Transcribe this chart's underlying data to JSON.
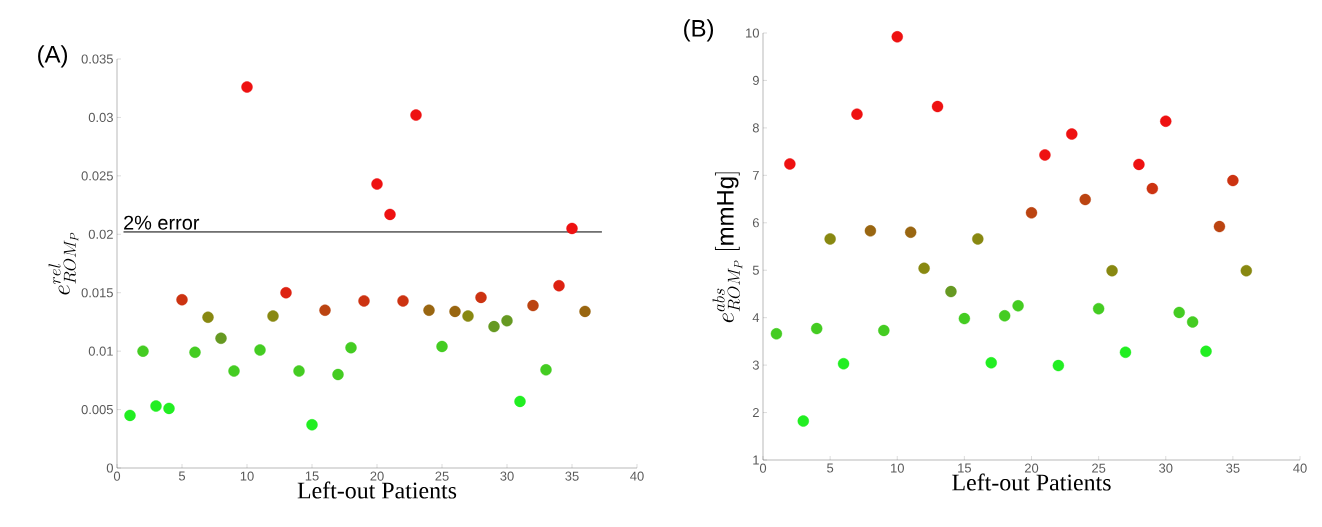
{
  "chart_data": [
    {
      "type": "scatter",
      "title": "(A)",
      "xlabel": "Left-out Patients",
      "ylabel": "e^{rel}_{ROM_P}",
      "xlim": [
        0,
        40
      ],
      "xticks": [
        0,
        5,
        10,
        15,
        20,
        25,
        30,
        35,
        40
      ],
      "ylim": [
        0,
        0.035
      ],
      "yticks": [
        0,
        0.005,
        0.01,
        0.015,
        0.02,
        0.025,
        0.03,
        0.035
      ],
      "ref_lines": [
        {
          "axis": "y",
          "value": 0.0202,
          "label": "2% error",
          "color": "#000000"
        }
      ],
      "x": [
        1,
        2,
        3,
        4,
        5,
        6,
        7,
        8,
        9,
        10,
        11,
        12,
        13,
        14,
        15,
        16,
        17,
        18,
        19,
        20,
        21,
        22,
        23,
        24,
        25,
        26,
        27,
        28,
        29,
        30,
        31,
        32,
        33,
        34,
        35,
        36
      ],
      "series": [
        {
          "values": [
            0.0045,
            0.01,
            0.0053,
            0.0051,
            0.0144,
            0.0099,
            0.0129,
            0.0111,
            0.0083,
            0.0326,
            0.0101,
            0.013,
            0.015,
            0.0083,
            0.0037,
            0.0135,
            0.008,
            0.0103,
            0.0143,
            0.0243,
            0.0217,
            0.0143,
            0.0302,
            0.0135,
            0.0104,
            0.0134,
            0.013,
            0.0146,
            0.0121,
            0.0126,
            0.0057,
            0.0139,
            0.0084,
            0.0156,
            0.0205,
            0.0134
          ],
          "colors": [
            "#22ee22",
            "#44cc22",
            "#22ee22",
            "#22ee22",
            "#cc3311",
            "#44cc22",
            "#888811",
            "#669922",
            "#44cc22",
            "#ee1111",
            "#44cc22",
            "#888811",
            "#dd2211",
            "#44cc22",
            "#22ee22",
            "#bb4411",
            "#44cc22",
            "#44cc22",
            "#cc3311",
            "#ee1111",
            "#ee1111",
            "#cc3311",
            "#ee1111",
            "#996611",
            "#44cc22",
            "#996611",
            "#888811",
            "#cc3311",
            "#669922",
            "#669922",
            "#22ee22",
            "#bb4411",
            "#44cc22",
            "#dd2211",
            "#ee1111",
            "#996611"
          ]
        }
      ]
    },
    {
      "type": "scatter",
      "title": "(B)",
      "xlabel": "Left-out Patients",
      "ylabel": "e^{abs}_{ROM_P}\\ [\\mathrm{mmHg}]",
      "xlim": [
        0,
        40
      ],
      "xticks": [
        0,
        5,
        10,
        15,
        20,
        25,
        30,
        35,
        40
      ],
      "ylim": [
        1,
        10
      ],
      "yticks": [
        1,
        2,
        3,
        4,
        5,
        6,
        7,
        8,
        9,
        10
      ],
      "x": [
        1,
        2,
        3,
        4,
        5,
        6,
        7,
        8,
        9,
        10,
        11,
        12,
        13,
        14,
        15,
        16,
        17,
        18,
        19,
        20,
        21,
        22,
        23,
        24,
        25,
        26,
        27,
        28,
        29,
        30,
        31,
        32,
        33,
        34,
        35,
        36
      ],
      "series": [
        {
          "values": [
            3.66,
            7.24,
            1.82,
            3.77,
            5.66,
            3.03,
            8.29,
            5.83,
            3.73,
            9.92,
            5.8,
            5.04,
            8.45,
            4.55,
            3.98,
            5.66,
            3.05,
            4.04,
            4.25,
            6.21,
            7.43,
            2.99,
            7.87,
            6.49,
            4.19,
            4.99,
            3.27,
            7.23,
            6.72,
            8.14,
            4.11,
            3.91,
            3.29,
            5.92,
            6.89,
            4.99
          ],
          "colors": [
            "#44cc22",
            "#ee1111",
            "#22ee22",
            "#44cc22",
            "#888811",
            "#22ee22",
            "#ee1111",
            "#996611",
            "#44cc22",
            "#ee1111",
            "#996611",
            "#888811",
            "#ee1111",
            "#669922",
            "#44cc22",
            "#888811",
            "#22ee22",
            "#44cc22",
            "#44cc22",
            "#bb4411",
            "#ee1111",
            "#22ee22",
            "#ee1111",
            "#bb4411",
            "#44cc22",
            "#888811",
            "#22ee22",
            "#ee1111",
            "#cc3311",
            "#ee1111",
            "#44cc22",
            "#44cc22",
            "#22ee22",
            "#bb4411",
            "#cc3311",
            "#888811"
          ]
        }
      ]
    }
  ]
}
